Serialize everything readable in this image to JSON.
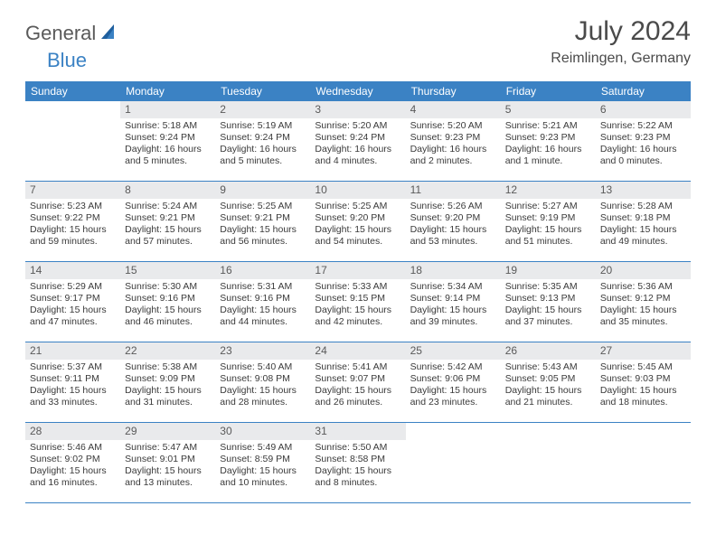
{
  "logo": {
    "part1": "General",
    "part2": "Blue"
  },
  "title": "July 2024",
  "location": "Reimlingen, Germany",
  "colors": {
    "header_bg": "#3b82c4",
    "header_text": "#ffffff",
    "daynum_bg": "#e9eaec",
    "daynum_text": "#5a5a5a",
    "border": "#3b82c4",
    "text": "#3a3a3a",
    "logo_gray": "#5a5a5a",
    "logo_blue": "#3b82c4"
  },
  "weekdays": [
    "Sunday",
    "Monday",
    "Tuesday",
    "Wednesday",
    "Thursday",
    "Friday",
    "Saturday"
  ],
  "weeks": [
    {
      "days": [
        null,
        {
          "num": "1",
          "sunrise": "Sunrise: 5:18 AM",
          "sunset": "Sunset: 9:24 PM",
          "day1": "Daylight: 16 hours",
          "day2": "and 5 minutes."
        },
        {
          "num": "2",
          "sunrise": "Sunrise: 5:19 AM",
          "sunset": "Sunset: 9:24 PM",
          "day1": "Daylight: 16 hours",
          "day2": "and 5 minutes."
        },
        {
          "num": "3",
          "sunrise": "Sunrise: 5:20 AM",
          "sunset": "Sunset: 9:24 PM",
          "day1": "Daylight: 16 hours",
          "day2": "and 4 minutes."
        },
        {
          "num": "4",
          "sunrise": "Sunrise: 5:20 AM",
          "sunset": "Sunset: 9:23 PM",
          "day1": "Daylight: 16 hours",
          "day2": "and 2 minutes."
        },
        {
          "num": "5",
          "sunrise": "Sunrise: 5:21 AM",
          "sunset": "Sunset: 9:23 PM",
          "day1": "Daylight: 16 hours",
          "day2": "and 1 minute."
        },
        {
          "num": "6",
          "sunrise": "Sunrise: 5:22 AM",
          "sunset": "Sunset: 9:23 PM",
          "day1": "Daylight: 16 hours",
          "day2": "and 0 minutes."
        }
      ]
    },
    {
      "days": [
        {
          "num": "7",
          "sunrise": "Sunrise: 5:23 AM",
          "sunset": "Sunset: 9:22 PM",
          "day1": "Daylight: 15 hours",
          "day2": "and 59 minutes."
        },
        {
          "num": "8",
          "sunrise": "Sunrise: 5:24 AM",
          "sunset": "Sunset: 9:21 PM",
          "day1": "Daylight: 15 hours",
          "day2": "and 57 minutes."
        },
        {
          "num": "9",
          "sunrise": "Sunrise: 5:25 AM",
          "sunset": "Sunset: 9:21 PM",
          "day1": "Daylight: 15 hours",
          "day2": "and 56 minutes."
        },
        {
          "num": "10",
          "sunrise": "Sunrise: 5:25 AM",
          "sunset": "Sunset: 9:20 PM",
          "day1": "Daylight: 15 hours",
          "day2": "and 54 minutes."
        },
        {
          "num": "11",
          "sunrise": "Sunrise: 5:26 AM",
          "sunset": "Sunset: 9:20 PM",
          "day1": "Daylight: 15 hours",
          "day2": "and 53 minutes."
        },
        {
          "num": "12",
          "sunrise": "Sunrise: 5:27 AM",
          "sunset": "Sunset: 9:19 PM",
          "day1": "Daylight: 15 hours",
          "day2": "and 51 minutes."
        },
        {
          "num": "13",
          "sunrise": "Sunrise: 5:28 AM",
          "sunset": "Sunset: 9:18 PM",
          "day1": "Daylight: 15 hours",
          "day2": "and 49 minutes."
        }
      ]
    },
    {
      "days": [
        {
          "num": "14",
          "sunrise": "Sunrise: 5:29 AM",
          "sunset": "Sunset: 9:17 PM",
          "day1": "Daylight: 15 hours",
          "day2": "and 47 minutes."
        },
        {
          "num": "15",
          "sunrise": "Sunrise: 5:30 AM",
          "sunset": "Sunset: 9:16 PM",
          "day1": "Daylight: 15 hours",
          "day2": "and 46 minutes."
        },
        {
          "num": "16",
          "sunrise": "Sunrise: 5:31 AM",
          "sunset": "Sunset: 9:16 PM",
          "day1": "Daylight: 15 hours",
          "day2": "and 44 minutes."
        },
        {
          "num": "17",
          "sunrise": "Sunrise: 5:33 AM",
          "sunset": "Sunset: 9:15 PM",
          "day1": "Daylight: 15 hours",
          "day2": "and 42 minutes."
        },
        {
          "num": "18",
          "sunrise": "Sunrise: 5:34 AM",
          "sunset": "Sunset: 9:14 PM",
          "day1": "Daylight: 15 hours",
          "day2": "and 39 minutes."
        },
        {
          "num": "19",
          "sunrise": "Sunrise: 5:35 AM",
          "sunset": "Sunset: 9:13 PM",
          "day1": "Daylight: 15 hours",
          "day2": "and 37 minutes."
        },
        {
          "num": "20",
          "sunrise": "Sunrise: 5:36 AM",
          "sunset": "Sunset: 9:12 PM",
          "day1": "Daylight: 15 hours",
          "day2": "and 35 minutes."
        }
      ]
    },
    {
      "days": [
        {
          "num": "21",
          "sunrise": "Sunrise: 5:37 AM",
          "sunset": "Sunset: 9:11 PM",
          "day1": "Daylight: 15 hours",
          "day2": "and 33 minutes."
        },
        {
          "num": "22",
          "sunrise": "Sunrise: 5:38 AM",
          "sunset": "Sunset: 9:09 PM",
          "day1": "Daylight: 15 hours",
          "day2": "and 31 minutes."
        },
        {
          "num": "23",
          "sunrise": "Sunrise: 5:40 AM",
          "sunset": "Sunset: 9:08 PM",
          "day1": "Daylight: 15 hours",
          "day2": "and 28 minutes."
        },
        {
          "num": "24",
          "sunrise": "Sunrise: 5:41 AM",
          "sunset": "Sunset: 9:07 PM",
          "day1": "Daylight: 15 hours",
          "day2": "and 26 minutes."
        },
        {
          "num": "25",
          "sunrise": "Sunrise: 5:42 AM",
          "sunset": "Sunset: 9:06 PM",
          "day1": "Daylight: 15 hours",
          "day2": "and 23 minutes."
        },
        {
          "num": "26",
          "sunrise": "Sunrise: 5:43 AM",
          "sunset": "Sunset: 9:05 PM",
          "day1": "Daylight: 15 hours",
          "day2": "and 21 minutes."
        },
        {
          "num": "27",
          "sunrise": "Sunrise: 5:45 AM",
          "sunset": "Sunset: 9:03 PM",
          "day1": "Daylight: 15 hours",
          "day2": "and 18 minutes."
        }
      ]
    },
    {
      "days": [
        {
          "num": "28",
          "sunrise": "Sunrise: 5:46 AM",
          "sunset": "Sunset: 9:02 PM",
          "day1": "Daylight: 15 hours",
          "day2": "and 16 minutes."
        },
        {
          "num": "29",
          "sunrise": "Sunrise: 5:47 AM",
          "sunset": "Sunset: 9:01 PM",
          "day1": "Daylight: 15 hours",
          "day2": "and 13 minutes."
        },
        {
          "num": "30",
          "sunrise": "Sunrise: 5:49 AM",
          "sunset": "Sunset: 8:59 PM",
          "day1": "Daylight: 15 hours",
          "day2": "and 10 minutes."
        },
        {
          "num": "31",
          "sunrise": "Sunrise: 5:50 AM",
          "sunset": "Sunset: 8:58 PM",
          "day1": "Daylight: 15 hours",
          "day2": "and 8 minutes."
        },
        null,
        null,
        null
      ]
    }
  ]
}
